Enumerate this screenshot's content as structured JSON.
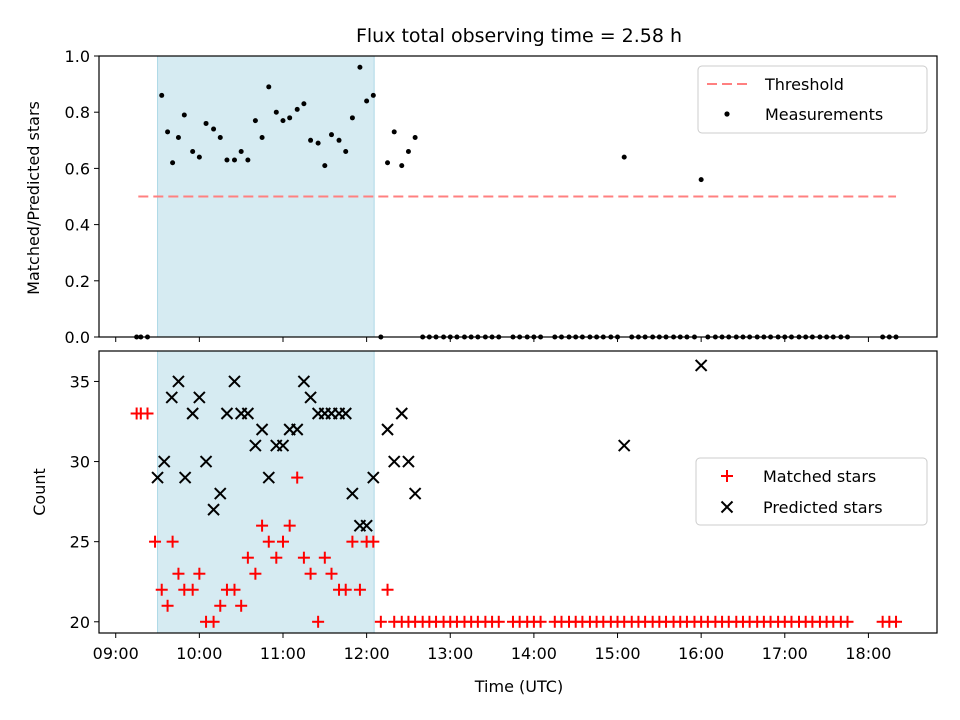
{
  "chart_data": [
    {
      "type": "scatter",
      "title": "Flux total observing time = 2.58 h",
      "ylabel": "Matched/Predicted stars",
      "xlabel": "",
      "xlim_hours": [
        8.8,
        18.82
      ],
      "ylim": [
        0,
        1.0
      ],
      "yticks": [
        0.0,
        0.2,
        0.4,
        0.6,
        0.8,
        1.0
      ],
      "ytick_labels": [
        "0.0",
        "0.2",
        "0.4",
        "0.6",
        "0.8",
        "1.0"
      ],
      "observing_window_hours": [
        9.5,
        12.09
      ],
      "colors": {
        "threshold": "#ff8080",
        "measurements": "#000000",
        "window": "#add8e6"
      },
      "threshold": {
        "value": 0.5,
        "x_range_hours": [
          9.27,
          18.33
        ]
      },
      "legend": {
        "position": "top-right",
        "entries": [
          "Threshold",
          "Measurements"
        ]
      },
      "series": [
        {
          "name": "Measurements",
          "x_hours": [
            9.25,
            9.3,
            9.38,
            9.55,
            9.62,
            9.68,
            9.75,
            9.82,
            9.92,
            10.0,
            10.08,
            10.17,
            10.25,
            10.33,
            10.42,
            10.5,
            10.58,
            10.67,
            10.75,
            10.83,
            10.92,
            11.0,
            11.08,
            11.17,
            11.25,
            11.33,
            11.42,
            11.5,
            11.58,
            11.67,
            11.75,
            11.83,
            11.92,
            12.0,
            12.08,
            12.17,
            12.25,
            12.33,
            12.42,
            12.5,
            12.58,
            12.67,
            12.75,
            12.83,
            12.92,
            13.0,
            13.08,
            13.17,
            13.25,
            13.33,
            13.42,
            13.5,
            13.58,
            13.75,
            13.83,
            13.92,
            14.0,
            14.08,
            14.25,
            14.33,
            14.42,
            14.5,
            14.58,
            14.67,
            14.75,
            14.83,
            14.92,
            15.0,
            15.08,
            15.17,
            15.25,
            15.33,
            15.42,
            15.5,
            15.58,
            15.67,
            15.75,
            15.83,
            15.92,
            16.0,
            16.08,
            16.17,
            16.25,
            16.33,
            16.42,
            16.5,
            16.58,
            16.67,
            16.75,
            16.83,
            16.92,
            17.0,
            17.08,
            17.17,
            17.25,
            17.33,
            17.42,
            17.5,
            17.58,
            17.67,
            17.75,
            18.17,
            18.25,
            18.33
          ],
          "y": [
            0,
            0,
            0,
            0.86,
            0.73,
            0.62,
            0.71,
            0.79,
            0.66,
            0.64,
            0.76,
            0.74,
            0.71,
            0.63,
            0.63,
            0.66,
            0.63,
            0.77,
            0.71,
            0.89,
            0.8,
            0.77,
            0.78,
            0.81,
            0.83,
            0.7,
            0.69,
            0.61,
            0.72,
            0.7,
            0.66,
            0.78,
            0.96,
            0.84,
            0.86,
            0,
            0.62,
            0.73,
            0.61,
            0.66,
            0.71,
            0,
            0,
            0,
            0,
            0,
            0,
            0,
            0,
            0,
            0,
            0,
            0,
            0,
            0,
            0,
            0,
            0,
            0,
            0,
            0,
            0,
            0,
            0,
            0,
            0,
            0,
            0,
            0.64,
            0,
            0,
            0,
            0,
            0,
            0,
            0,
            0,
            0,
            0,
            0.56,
            0,
            0,
            0,
            0,
            0,
            0,
            0,
            0,
            0,
            0,
            0,
            0,
            0,
            0,
            0,
            0,
            0,
            0,
            0,
            0,
            0,
            0,
            0,
            0
          ]
        }
      ]
    },
    {
      "type": "scatter",
      "xlabel": "Time (UTC)",
      "ylabel": "Count",
      "xlim_hours": [
        8.8,
        18.82
      ],
      "ylim": [
        19.3,
        36.9
      ],
      "xticks_hours": [
        9,
        10,
        11,
        12,
        13,
        14,
        15,
        16,
        17,
        18
      ],
      "xtick_labels": [
        "09:00",
        "10:00",
        "11:00",
        "12:00",
        "13:00",
        "14:00",
        "15:00",
        "16:00",
        "17:00",
        "18:00"
      ],
      "yticks": [
        20,
        25,
        30,
        35
      ],
      "ytick_labels": [
        "20",
        "25",
        "30",
        "35"
      ],
      "observing_window_hours": [
        9.5,
        12.09
      ],
      "colors": {
        "matched": "#ff0000",
        "predicted": "#000000",
        "window": "#add8e6"
      },
      "legend": {
        "position": "center-right",
        "entries": [
          "Matched stars",
          "Predicted stars"
        ]
      },
      "series": [
        {
          "name": "Matched stars",
          "x_hours": [
            9.25,
            9.3,
            9.38,
            9.47,
            9.55,
            9.62,
            9.68,
            9.75,
            9.82,
            9.92,
            10.0,
            10.08,
            10.17,
            10.25,
            10.33,
            10.42,
            10.5,
            10.58,
            10.67,
            10.75,
            10.83,
            10.92,
            11.0,
            11.08,
            11.17,
            11.25,
            11.33,
            11.42,
            11.5,
            11.58,
            11.67,
            11.75,
            11.83,
            11.92,
            12.0,
            12.08,
            12.17,
            12.25,
            12.33,
            12.42,
            12.5,
            12.58,
            12.67,
            12.75,
            12.83,
            12.92,
            13.0,
            13.08,
            13.17,
            13.25,
            13.33,
            13.42,
            13.5,
            13.58,
            13.75,
            13.83,
            13.92,
            14.0,
            14.08,
            14.25,
            14.33,
            14.42,
            14.5,
            14.58,
            14.67,
            14.75,
            14.83,
            14.92,
            15.0,
            15.08,
            15.17,
            15.25,
            15.33,
            15.42,
            15.5,
            15.58,
            15.67,
            15.75,
            15.83,
            15.92,
            16.0,
            16.08,
            16.17,
            16.25,
            16.33,
            16.42,
            16.5,
            16.58,
            16.67,
            16.75,
            16.83,
            16.92,
            17.0,
            17.08,
            17.17,
            17.25,
            17.33,
            17.42,
            17.5,
            17.58,
            17.67,
            17.75,
            18.17,
            18.25,
            18.33
          ],
          "y": [
            33,
            33,
            33,
            25,
            22,
            21,
            25,
            23,
            22,
            22,
            23,
            20,
            20,
            21,
            22,
            22,
            21,
            24,
            23,
            26,
            25,
            24,
            25,
            26,
            29,
            24,
            23,
            20,
            24,
            23,
            22,
            22,
            25,
            22,
            25,
            25,
            20,
            22,
            20,
            20,
            20,
            20,
            20,
            20,
            20,
            20,
            20,
            20,
            20,
            20,
            20,
            20,
            20,
            20,
            20,
            20,
            20,
            20,
            20,
            20,
            20,
            20,
            20,
            20,
            20,
            20,
            20,
            20,
            20,
            20,
            20,
            20,
            20,
            20,
            20,
            20,
            20,
            20,
            20,
            20,
            20,
            20,
            20,
            20,
            20,
            20,
            20,
            20,
            20,
            20,
            20,
            20,
            20,
            20,
            20,
            20,
            20,
            20,
            20,
            20,
            20,
            20,
            20,
            20,
            20
          ]
        },
        {
          "name": "Predicted stars",
          "x_hours": [
            9.5,
            9.58,
            9.67,
            9.75,
            9.83,
            9.92,
            10.0,
            10.08,
            10.17,
            10.25,
            10.33,
            10.42,
            10.5,
            10.58,
            10.67,
            10.75,
            10.83,
            10.92,
            11.0,
            11.08,
            11.17,
            11.25,
            11.33,
            11.42,
            11.5,
            11.58,
            11.67,
            11.75,
            11.83,
            11.92,
            12.0,
            12.08,
            12.25,
            12.33,
            12.42,
            12.5,
            12.58,
            15.08,
            16.0
          ],
          "y": [
            29,
            30,
            34,
            35,
            29,
            33,
            34,
            30,
            27,
            28,
            33,
            35,
            33,
            33,
            31,
            32,
            29,
            31,
            31,
            32,
            32,
            35,
            34,
            33,
            33,
            33,
            33,
            33,
            28,
            26,
            26,
            29,
            32,
            30,
            33,
            30,
            28,
            31,
            36
          ]
        }
      ]
    }
  ]
}
